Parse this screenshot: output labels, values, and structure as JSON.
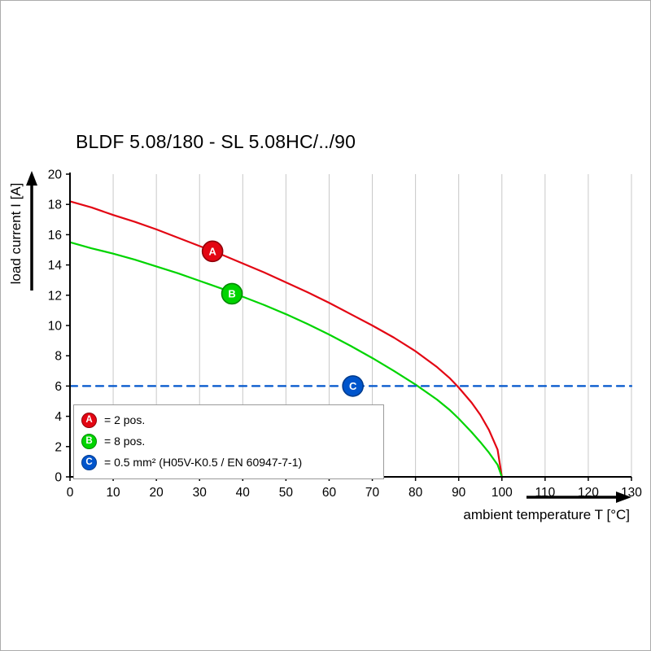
{
  "chart_data": {
    "type": "line",
    "title": "BLDF 5.08/180 - SL 5.08HC/../90",
    "xlabel": "ambient temperature T [°C]",
    "ylabel": "load current I [A]",
    "xlim": [
      0,
      130
    ],
    "ylim": [
      0,
      20
    ],
    "xticks": [
      0,
      10,
      20,
      30,
      40,
      50,
      60,
      70,
      80,
      90,
      100,
      110,
      120,
      130
    ],
    "yticks": [
      0,
      2,
      4,
      6,
      8,
      10,
      12,
      14,
      16,
      18,
      20
    ],
    "grid": {
      "vertical": true,
      "horizontal": false,
      "color": "#c8c8c8"
    },
    "legend_position": "bottom-left-inside",
    "series": [
      {
        "id": "A",
        "legend_label": "= 2 pos.",
        "color": "#e30613",
        "edge": "#8e0009",
        "style": "solid",
        "marker": {
          "x": 33,
          "y": 14.9
        },
        "points": [
          [
            0,
            18.2
          ],
          [
            5,
            17.8
          ],
          [
            10,
            17.3
          ],
          [
            15,
            16.85
          ],
          [
            20,
            16.35
          ],
          [
            25,
            15.8
          ],
          [
            30,
            15.25
          ],
          [
            35,
            14.7
          ],
          [
            40,
            14.1
          ],
          [
            45,
            13.5
          ],
          [
            50,
            12.85
          ],
          [
            55,
            12.2
          ],
          [
            60,
            11.5
          ],
          [
            65,
            10.75
          ],
          [
            70,
            10.0
          ],
          [
            75,
            9.2
          ],
          [
            80,
            8.3
          ],
          [
            85,
            7.25
          ],
          [
            88,
            6.5
          ],
          [
            90,
            5.9
          ],
          [
            93,
            4.9
          ],
          [
            95,
            4.1
          ],
          [
            97,
            3.1
          ],
          [
            99,
            1.8
          ],
          [
            100,
            0
          ]
        ]
      },
      {
        "id": "B",
        "legend_label": "= 8 pos.",
        "color": "#00d400",
        "edge": "#008a00",
        "style": "solid",
        "marker": {
          "x": 37.5,
          "y": 12.1
        },
        "points": [
          [
            0,
            15.5
          ],
          [
            5,
            15.1
          ],
          [
            10,
            14.75
          ],
          [
            15,
            14.35
          ],
          [
            20,
            13.9
          ],
          [
            25,
            13.45
          ],
          [
            30,
            12.95
          ],
          [
            35,
            12.45
          ],
          [
            40,
            11.9
          ],
          [
            45,
            11.35
          ],
          [
            50,
            10.75
          ],
          [
            55,
            10.1
          ],
          [
            60,
            9.4
          ],
          [
            65,
            8.65
          ],
          [
            70,
            7.85
          ],
          [
            75,
            7.0
          ],
          [
            80,
            6.1
          ],
          [
            85,
            5.1
          ],
          [
            88,
            4.4
          ],
          [
            90,
            3.85
          ],
          [
            93,
            2.95
          ],
          [
            95,
            2.3
          ],
          [
            97,
            1.6
          ],
          [
            99,
            0.8
          ],
          [
            100,
            0
          ]
        ]
      },
      {
        "id": "C",
        "legend_label": "= 0.5 mm² (H05V-K0.5 / EN 60947-7-1)",
        "color": "#0055cc",
        "edge": "#003c8e",
        "style": "dashed",
        "marker": {
          "x": 65.5,
          "y": 6
        },
        "points": [
          [
            0,
            6
          ],
          [
            130,
            6
          ]
        ]
      }
    ]
  }
}
